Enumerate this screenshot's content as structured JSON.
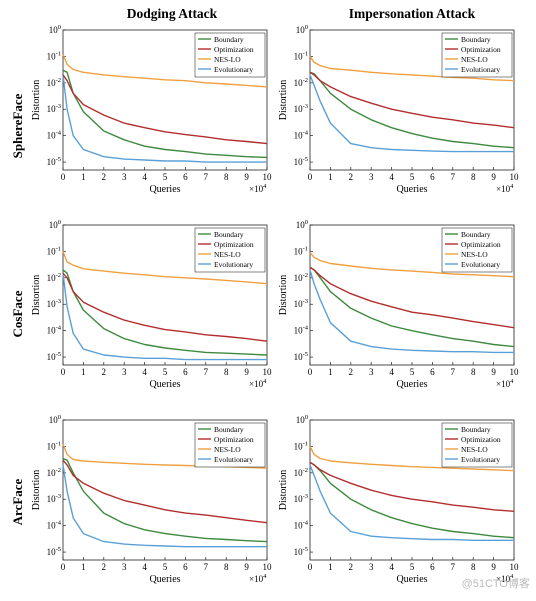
{
  "column_titles": [
    "Dodging Attack",
    "Impersonation Attack"
  ],
  "row_labels": [
    "SphereFace",
    "CosFace",
    "ArcFace"
  ],
  "watermark": "@51CTO博客",
  "colors": {
    "Boundary": "#3d8a3d",
    "Optimization": "#b32d2d",
    "NES-LO": "#f0a040",
    "Evolutionary": "#5aa0d8"
  },
  "chart_data": [
    {
      "type": "line",
      "row": "SphereFace",
      "column": "Dodging Attack",
      "xlabel": "Queries",
      "ylabel": "Distortion",
      "x_multiplier_label": "×10^4",
      "x": [
        0,
        0.2,
        0.5,
        1,
        2,
        3,
        4,
        5,
        6,
        7,
        8,
        9,
        10
      ],
      "xlim": [
        0,
        10
      ],
      "ylim_log10": [
        -5.3,
        0
      ],
      "xticks": [
        "0",
        "1",
        "2",
        "3",
        "4",
        "5",
        "6",
        "7",
        "8",
        "9",
        "10"
      ],
      "yticks": [
        "10^-5",
        "10^-4",
        "10^-3",
        "10^-2",
        "10^-1",
        "10^0"
      ],
      "legend_position": "top-right",
      "series": [
        {
          "name": "Boundary",
          "values": [
            0.03,
            0.025,
            0.004,
            0.0008,
            0.00015,
            7e-05,
            4e-05,
            3e-05,
            2.5e-05,
            2e-05,
            1.8e-05,
            1.6e-05,
            1.5e-05
          ]
        },
        {
          "name": "Optimization",
          "values": [
            0.02,
            0.012,
            0.004,
            0.0015,
            0.0006,
            0.0003,
            0.0002,
            0.00014,
            0.00011,
            9e-05,
            7e-05,
            6e-05,
            5e-05
          ]
        },
        {
          "name": "NES-LO",
          "values": [
            0.12,
            0.05,
            0.032,
            0.025,
            0.02,
            0.017,
            0.015,
            0.013,
            0.012,
            0.01,
            0.009,
            0.008,
            0.007
          ]
        },
        {
          "name": "Evolutionary",
          "values": [
            0.02,
            0.001,
            0.0001,
            3e-05,
            1.6e-05,
            1.3e-05,
            1.2e-05,
            1.1e-05,
            1.1e-05,
            1e-05,
            1e-05,
            1e-05,
            1e-05
          ]
        }
      ]
    },
    {
      "type": "line",
      "row": "SphereFace",
      "column": "Impersonation Attack",
      "xlabel": "Queries",
      "ylabel": "Distortion",
      "x_multiplier_label": "×10^4",
      "x": [
        0,
        0.2,
        0.5,
        1,
        2,
        3,
        4,
        5,
        6,
        7,
        8,
        9,
        10
      ],
      "xlim": [
        0,
        10
      ],
      "ylim_log10": [
        -5.3,
        0
      ],
      "xticks": [
        "0",
        "1",
        "2",
        "3",
        "4",
        "5",
        "6",
        "7",
        "8",
        "9",
        "10"
      ],
      "yticks": [
        "10^-5",
        "10^-4",
        "10^-3",
        "10^-2",
        "10^-1",
        "10^0"
      ],
      "legend_position": "top-right",
      "series": [
        {
          "name": "Boundary",
          "values": [
            0.025,
            0.022,
            0.012,
            0.004,
            0.001,
            0.0004,
            0.0002,
            0.00012,
            8e-05,
            6e-05,
            5e-05,
            4e-05,
            3.5e-05
          ]
        },
        {
          "name": "Optimization",
          "values": [
            0.025,
            0.02,
            0.012,
            0.007,
            0.003,
            0.0017,
            0.001,
            0.0007,
            0.0005,
            0.0004,
            0.0003,
            0.00025,
            0.0002
          ]
        },
        {
          "name": "NES-LO",
          "values": [
            0.1,
            0.06,
            0.045,
            0.035,
            0.03,
            0.025,
            0.022,
            0.02,
            0.018,
            0.016,
            0.015,
            0.013,
            0.012
          ]
        },
        {
          "name": "Evolutionary",
          "values": [
            0.02,
            0.008,
            0.002,
            0.0003,
            5e-05,
            3.5e-05,
            3e-05,
            2.8e-05,
            2.6e-05,
            2.5e-05,
            2.5e-05,
            2.5e-05,
            2.5e-05
          ]
        }
      ]
    },
    {
      "type": "line",
      "row": "CosFace",
      "column": "Dodging Attack",
      "xlabel": "Queries",
      "ylabel": "Distortion",
      "x_multiplier_label": "×10^4",
      "x": [
        0,
        0.2,
        0.5,
        1,
        2,
        3,
        4,
        5,
        6,
        7,
        8,
        9,
        10
      ],
      "xlim": [
        0,
        10
      ],
      "ylim_log10": [
        -5.3,
        0
      ],
      "xticks": [
        "0",
        "1",
        "2",
        "3",
        "4",
        "5",
        "6",
        "7",
        "8",
        "9",
        "10"
      ],
      "yticks": [
        "10^-5",
        "10^-4",
        "10^-3",
        "10^-2",
        "10^-1",
        "10^0"
      ],
      "legend_position": "top-right",
      "series": [
        {
          "name": "Boundary",
          "values": [
            0.02,
            0.015,
            0.003,
            0.0006,
            0.00012,
            5e-05,
            3e-05,
            2.2e-05,
            1.8e-05,
            1.5e-05,
            1.4e-05,
            1.3e-05,
            1.2e-05
          ]
        },
        {
          "name": "Optimization",
          "values": [
            0.015,
            0.01,
            0.003,
            0.0012,
            0.0005,
            0.00025,
            0.00016,
            0.00011,
            9e-05,
            7e-05,
            6e-05,
            5e-05,
            4e-05
          ]
        },
        {
          "name": "NES-LO",
          "values": [
            0.1,
            0.04,
            0.03,
            0.022,
            0.018,
            0.015,
            0.013,
            0.011,
            0.01,
            0.009,
            0.008,
            0.007,
            0.006
          ]
        },
        {
          "name": "Evolutionary",
          "values": [
            0.015,
            0.0008,
            8e-05,
            2e-05,
            1.2e-05,
            1e-05,
            9e-06,
            9e-06,
            8e-06,
            8e-06,
            8e-06,
            8e-06,
            8e-06
          ]
        }
      ]
    },
    {
      "type": "line",
      "row": "CosFace",
      "column": "Impersonation Attack",
      "xlabel": "Queries",
      "ylabel": "Distortion",
      "x_multiplier_label": "×10^4",
      "x": [
        0,
        0.2,
        0.5,
        1,
        2,
        3,
        4,
        5,
        6,
        7,
        8,
        9,
        10
      ],
      "xlim": [
        0,
        10
      ],
      "ylim_log10": [
        -5.3,
        0
      ],
      "xticks": [
        "0",
        "1",
        "2",
        "3",
        "4",
        "5",
        "6",
        "7",
        "8",
        "9",
        "10"
      ],
      "yticks": [
        "10^-5",
        "10^-4",
        "10^-3",
        "10^-2",
        "10^-1",
        "10^0"
      ],
      "legend_position": "top-right",
      "series": [
        {
          "name": "Boundary",
          "values": [
            0.025,
            0.02,
            0.01,
            0.003,
            0.0007,
            0.0003,
            0.00015,
            0.0001,
            7e-05,
            5e-05,
            4e-05,
            3e-05,
            2.5e-05
          ]
        },
        {
          "name": "Optimization",
          "values": [
            0.025,
            0.02,
            0.012,
            0.006,
            0.0025,
            0.0013,
            0.0008,
            0.0005,
            0.0004,
            0.0003,
            0.00022,
            0.00017,
            0.00013
          ]
        },
        {
          "name": "NES-LO",
          "values": [
            0.09,
            0.06,
            0.045,
            0.035,
            0.028,
            0.023,
            0.02,
            0.018,
            0.016,
            0.014,
            0.013,
            0.012,
            0.011
          ]
        },
        {
          "name": "Evolutionary",
          "values": [
            0.02,
            0.006,
            0.0015,
            0.0002,
            4e-05,
            2.5e-05,
            2e-05,
            1.8e-05,
            1.7e-05,
            1.6e-05,
            1.6e-05,
            1.5e-05,
            1.5e-05
          ]
        }
      ]
    },
    {
      "type": "line",
      "row": "ArcFace",
      "column": "Dodging Attack",
      "xlabel": "Queries",
      "ylabel": "Distortion",
      "x_multiplier_label": "×10^4",
      "x": [
        0,
        0.2,
        0.5,
        1,
        2,
        3,
        4,
        5,
        6,
        7,
        8,
        9,
        10
      ],
      "xlim": [
        0,
        10
      ],
      "ylim_log10": [
        -5.3,
        0
      ],
      "xticks": [
        "0",
        "1",
        "2",
        "3",
        "4",
        "5",
        "6",
        "7",
        "8",
        "9",
        "10"
      ],
      "yticks": [
        "10^-5",
        "10^-4",
        "10^-3",
        "10^-2",
        "10^-1",
        "10^0"
      ],
      "legend_position": "top-right",
      "series": [
        {
          "name": "Boundary",
          "values": [
            0.035,
            0.03,
            0.01,
            0.002,
            0.0003,
            0.00012,
            7e-05,
            5e-05,
            4e-05,
            3.3e-05,
            3e-05,
            2.7e-05,
            2.5e-05
          ]
        },
        {
          "name": "Optimization",
          "values": [
            0.03,
            0.02,
            0.008,
            0.004,
            0.0017,
            0.0009,
            0.0006,
            0.0004,
            0.0003,
            0.00025,
            0.0002,
            0.00016,
            0.00013
          ]
        },
        {
          "name": "NES-LO",
          "values": [
            0.12,
            0.05,
            0.032,
            0.028,
            0.025,
            0.023,
            0.021,
            0.02,
            0.019,
            0.018,
            0.017,
            0.016,
            0.015
          ]
        },
        {
          "name": "Evolutionary",
          "values": [
            0.02,
            0.002,
            0.0002,
            5e-05,
            2.5e-05,
            2e-05,
            1.8e-05,
            1.7e-05,
            1.6e-05,
            1.6e-05,
            1.6e-05,
            1.6e-05,
            1.6e-05
          ]
        }
      ]
    },
    {
      "type": "line",
      "row": "ArcFace",
      "column": "Impersonation Attack",
      "xlabel": "Queries",
      "ylabel": "Distortion",
      "x_multiplier_label": "×10^4",
      "x": [
        0,
        0.2,
        0.5,
        1,
        2,
        3,
        4,
        5,
        6,
        7,
        8,
        9,
        10
      ],
      "xlim": [
        0,
        10
      ],
      "ylim_log10": [
        -5.3,
        0
      ],
      "xticks": [
        "0",
        "1",
        "2",
        "3",
        "4",
        "5",
        "6",
        "7",
        "8",
        "9",
        "10"
      ],
      "yticks": [
        "10^-5",
        "10^-4",
        "10^-3",
        "10^-2",
        "10^-1",
        "10^0"
      ],
      "legend_position": "top-right",
      "series": [
        {
          "name": "Boundary",
          "values": [
            0.025,
            0.02,
            0.012,
            0.004,
            0.001,
            0.0004,
            0.0002,
            0.00012,
            8e-05,
            6e-05,
            5e-05,
            4e-05,
            3.5e-05
          ]
        },
        {
          "name": "Optimization",
          "values": [
            0.025,
            0.02,
            0.013,
            0.008,
            0.004,
            0.0022,
            0.0014,
            0.001,
            0.0008,
            0.0006,
            0.0005,
            0.0004,
            0.00035
          ]
        },
        {
          "name": "NES-LO",
          "values": [
            0.1,
            0.05,
            0.035,
            0.028,
            0.024,
            0.021,
            0.019,
            0.017,
            0.016,
            0.015,
            0.014,
            0.013,
            0.012
          ]
        },
        {
          "name": "Evolutionary",
          "values": [
            0.02,
            0.008,
            0.002,
            0.0003,
            6e-05,
            4e-05,
            3.5e-05,
            3.2e-05,
            3e-05,
            3e-05,
            2.8e-05,
            2.8e-05,
            2.8e-05
          ]
        }
      ]
    }
  ]
}
